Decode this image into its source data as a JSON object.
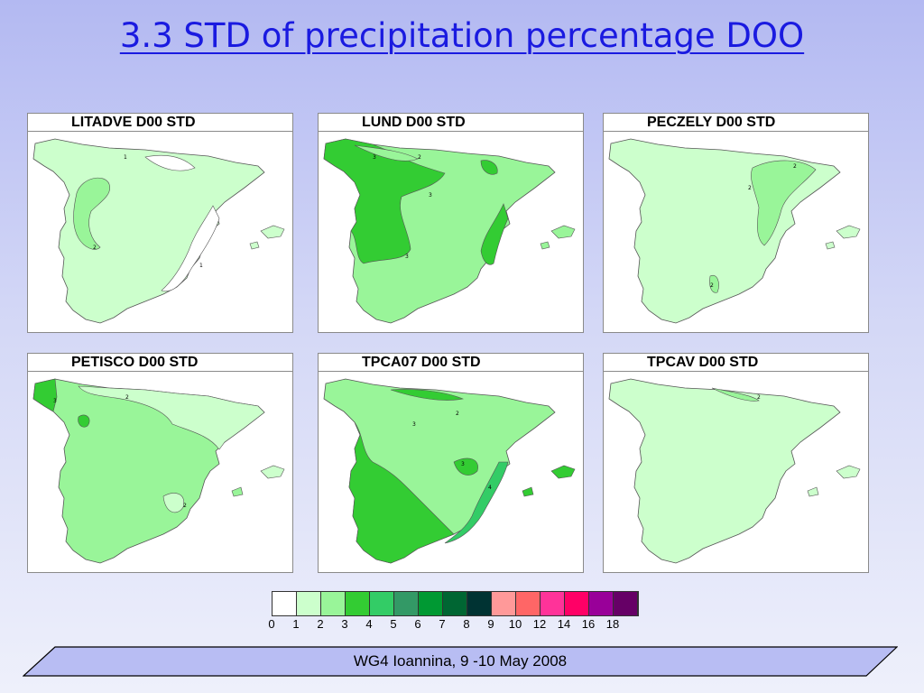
{
  "slide": {
    "title": "3.3 STD of precipitation percentage DOO",
    "footer": "WG4 Ioannina, 9 -10 May 2008"
  },
  "panels": [
    {
      "label": "LITADVE D00 STD",
      "zones": [
        {
          "class": 2,
          "region": "north-west"
        },
        {
          "class": 0,
          "region": "north coast"
        },
        {
          "class": 0,
          "region": "east coast"
        }
      ],
      "contour_labels": [
        "1",
        "2",
        "1",
        "1",
        "1"
      ]
    },
    {
      "label": "LUND D00 STD",
      "zones": [
        {
          "class": 3,
          "region": "west"
        },
        {
          "class": 3,
          "region": "east coast"
        },
        {
          "class": 2,
          "region": "interior"
        }
      ],
      "contour_labels": [
        "3",
        "2",
        "3",
        "3",
        "3",
        "3"
      ]
    },
    {
      "label": "PECZELY D00 STD",
      "zones": [
        {
          "class": 2,
          "region": "north-east"
        },
        {
          "class": 1,
          "region": "rest"
        }
      ],
      "contour_labels": [
        "2",
        "2",
        "2"
      ]
    },
    {
      "label": "PETISCO D00 STD",
      "zones": [
        {
          "class": 3,
          "region": "north-west corner"
        },
        {
          "class": 1,
          "region": "north-east"
        },
        {
          "class": 2,
          "region": "rest"
        }
      ],
      "contour_labels": [
        "3",
        "2",
        "2",
        "2",
        "2",
        "2",
        "2"
      ]
    },
    {
      "label": "TPCA07 D00 STD",
      "zones": [
        {
          "class": 3,
          "region": "west"
        },
        {
          "class": 4,
          "region": "south-east"
        },
        {
          "class": 2,
          "region": "interior"
        }
      ],
      "contour_labels": [
        "3",
        "2",
        "3",
        "3",
        "3",
        "3",
        "4",
        "4",
        "2"
      ]
    },
    {
      "label": "TPCAV D00 STD",
      "zones": [
        {
          "class": 2,
          "region": "north coast"
        },
        {
          "class": 1,
          "region": "rest"
        }
      ],
      "contour_labels": [
        "2",
        "1"
      ]
    }
  ],
  "legend": {
    "ticks": [
      "0",
      "1",
      "2",
      "3",
      "4",
      "5",
      "6",
      "7",
      "8",
      "9",
      "10",
      "12",
      "14",
      "16",
      "18"
    ],
    "colors": [
      "#ffffff",
      "#ccffcc",
      "#99f599",
      "#33cc33",
      "#33cc66",
      "#339966",
      "#009933",
      "#006633",
      "#003333",
      "#ff9999",
      "#ff6666",
      "#ff3399",
      "#ff0066",
      "#990099",
      "#660066"
    ]
  }
}
